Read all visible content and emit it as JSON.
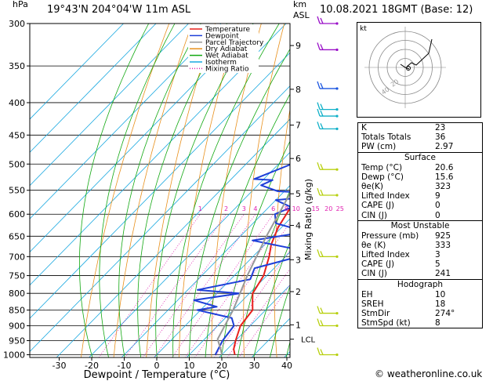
{
  "header": {
    "left_unit": "hPa",
    "location": "19°43'N  204°04'W  11m  ASL",
    "km_label": "km",
    "asl_label": "ASL",
    "datetime": "10.08.2021  18GMT  (Base: 12)"
  },
  "footer": {
    "credit": "© weatheronline.co.uk"
  },
  "colors": {
    "temperature": "#e8201c",
    "dewpoint": "#1e3fd8",
    "parcel": "#999999",
    "dry_adiabat": "#e8901c",
    "wet_adiabat": "#11a811",
    "isotherm": "#18a8e0",
    "mixing_ratio": "#e020b0",
    "wind": "#9a10c8",
    "mid_wind": "#1a55e0",
    "cyan_wind": "#10b0c8",
    "low_wind": "#b8d010"
  },
  "chart_data": {
    "type": "line",
    "title": "",
    "xlabel": "Dewpoint / Temperature (°C)",
    "ylabel": "hPa",
    "right_ylabel": "Mixing Ratio (g/kg)",
    "x_ticks": [
      "-30",
      "-20",
      "-10",
      "0",
      "10",
      "20",
      "30",
      "40"
    ],
    "xlim": [
      -35,
      40
    ],
    "pressure_levels": [
      "300",
      "350",
      "400",
      "450",
      "500",
      "550",
      "600",
      "650",
      "700",
      "750",
      "800",
      "850",
      "900",
      "950",
      "1000"
    ],
    "ylim": [
      300,
      1010
    ],
    "yscale": "log",
    "km_ticks": [
      {
        "p": 325,
        "label": "9"
      },
      {
        "p": 381,
        "label": "8"
      },
      {
        "p": 434,
        "label": "7"
      },
      {
        "p": 490,
        "label": "6"
      },
      {
        "p": 557,
        "label": "5"
      },
      {
        "p": 625,
        "label": "4"
      },
      {
        "p": 708,
        "label": "3"
      },
      {
        "p": 795,
        "label": "2"
      },
      {
        "p": 897,
        "label": "1"
      }
    ],
    "lcl": {
      "p": 945,
      "label": "LCL"
    },
    "mixing_ratio_labels": [
      "1",
      "2",
      "3",
      "4",
      "6",
      "8",
      "10",
      "15",
      "20",
      "25"
    ],
    "legend": {
      "position": "top-left",
      "entries": [
        "Temperature",
        "Dewpoint",
        "Parcel Trajectory",
        "Dry Adiabat",
        "Wet Adiabat",
        "Isotherm",
        "Mixing Ratio"
      ]
    },
    "series": [
      {
        "name": "Temperature",
        "points": [
          [
            -25,
            300
          ],
          [
            -21,
            330
          ],
          [
            -19,
            360
          ],
          [
            -15,
            400
          ],
          [
            -13,
            440
          ],
          [
            -9,
            480
          ],
          [
            -6,
            520
          ],
          [
            -5,
            552
          ],
          [
            -3,
            590
          ],
          [
            -1,
            630
          ],
          [
            2,
            670
          ],
          [
            5,
            700
          ],
          [
            9,
            750
          ],
          [
            11,
            800
          ],
          [
            13,
            820
          ],
          [
            16,
            850
          ],
          [
            17,
            900
          ],
          [
            20,
            950
          ],
          [
            22,
            980
          ],
          [
            24,
            1000
          ]
        ]
      },
      {
        "name": "Dewpoint",
        "points": [
          [
            -12,
            300
          ],
          [
            -16,
            330
          ],
          [
            -5,
            350
          ],
          [
            -12,
            380
          ],
          [
            -13,
            400
          ],
          [
            -14,
            450
          ],
          [
            -16,
            500
          ],
          [
            -23,
            528
          ],
          [
            -17,
            530
          ],
          [
            -19,
            540
          ],
          [
            -12,
            552
          ],
          [
            7,
            558
          ],
          [
            -10,
            570
          ],
          [
            -3,
            585
          ],
          [
            -6,
            600
          ],
          [
            -3,
            620
          ],
          [
            9,
            640
          ],
          [
            -5,
            660
          ],
          [
            10,
            680
          ],
          [
            14,
            700
          ],
          [
            4,
            730
          ],
          [
            6,
            760
          ],
          [
            -7,
            790
          ],
          [
            7,
            800
          ],
          [
            -5,
            820
          ],
          [
            4,
            840
          ],
          [
            -1,
            850
          ],
          [
            12,
            875
          ],
          [
            15,
            900
          ],
          [
            16,
            950
          ],
          [
            18,
            1000
          ]
        ]
      },
      {
        "name": "Parcel Trajectory",
        "points": [
          [
            -27,
            350
          ],
          [
            -16,
            450
          ],
          [
            -8,
            550
          ],
          [
            -2,
            650
          ],
          [
            4,
            750
          ],
          [
            10,
            850
          ],
          [
            14,
            945
          ],
          [
            18,
            980
          ],
          [
            20,
            1000
          ]
        ]
      }
    ],
    "hodograph": {
      "label": "kt",
      "ring_labels": [
        "20",
        "40"
      ]
    }
  },
  "indices": {
    "k": {
      "label": "K",
      "value": "23"
    },
    "totals": {
      "label": "Totals Totals",
      "value": "36"
    },
    "pw": {
      "label": "PW (cm)",
      "value": "2.97"
    },
    "surface": {
      "title": "Surface",
      "temp": {
        "label": "Temp (°C)",
        "value": "20.6"
      },
      "dewp": {
        "label": "Dewp (°C)",
        "value": "15.6"
      },
      "theta_e": {
        "label": "θe(K)",
        "value": "323"
      },
      "lifted": {
        "label": "Lifted Index",
        "value": "9"
      },
      "cape": {
        "label": "CAPE (J)",
        "value": "0"
      },
      "cin": {
        "label": "CIN (J)",
        "value": "0"
      }
    },
    "most_unstable": {
      "title": "Most Unstable",
      "pressure": {
        "label": "Pressure (mb)",
        "value": "925"
      },
      "theta_e": {
        "label": "θe (K)",
        "value": "333"
      },
      "lifted": {
        "label": "Lifted Index",
        "value": "3"
      },
      "cape": {
        "label": "CAPE (J)",
        "value": "5"
      },
      "cin": {
        "label": "CIN (J)",
        "value": "241"
      }
    },
    "hodograph": {
      "title": "Hodograph",
      "eh": {
        "label": "EH",
        "value": "10"
      },
      "sreh": {
        "label": "SREH",
        "value": "18"
      },
      "stmdir": {
        "label": "StmDir",
        "value": "274°"
      },
      "stmspd": {
        "label": "StmSpd (kt)",
        "value": "8"
      }
    }
  }
}
